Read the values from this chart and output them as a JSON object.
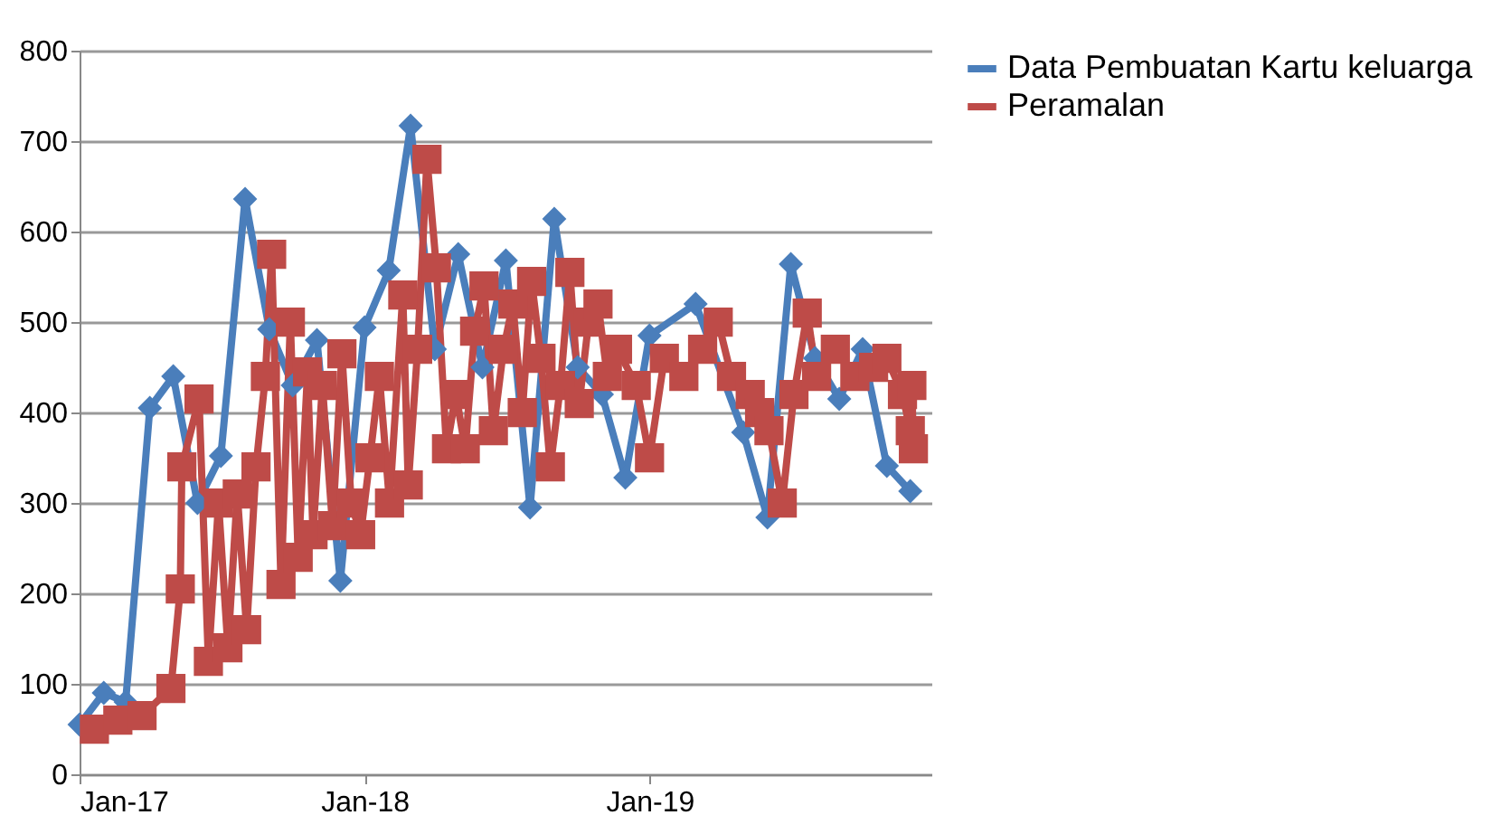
{
  "chart_data": {
    "type": "line",
    "xlim": [
      "2017-01-01",
      "2019-12-28"
    ],
    "xticks": [
      {
        "value": "2017-01-01",
        "label": "Jan-17"
      },
      {
        "value": "2018-01-01",
        "label": "Jan-18"
      },
      {
        "value": "2019-01-01",
        "label": "Jan-19"
      }
    ],
    "ylim": [
      0,
      800
    ],
    "yticks": [
      0,
      100,
      200,
      300,
      400,
      500,
      600,
      700,
      800
    ],
    "grid": "y",
    "legend": "right",
    "series": [
      {
        "name": "Data Pembuatan Kartu keluarga",
        "color": "#4a7ebb",
        "marker": "diamond",
        "x": [
          "2017-01",
          "2017-02",
          "2017-03",
          "2017-04",
          "2017-05",
          "2017-06",
          "2017-07",
          "2017-08",
          "2017-09",
          "2017-10",
          "2017-11",
          "2017-12",
          "2018-01",
          "2018-02",
          "2018-03",
          "2018-04",
          "2018-05",
          "2018-06",
          "2018-07",
          "2018-08",
          "2018-09",
          "2018-10",
          "2018-11",
          "2018-12",
          "2019-01",
          "2019-02",
          "2019-03",
          "2019-04",
          "2019-05",
          "2019-06",
          "2019-07",
          "2019-08",
          "2019-09",
          "2019-10",
          "2019-11",
          "2019-12"
        ],
        "values": [
          55,
          90,
          80,
          405,
          440,
          300,
          352,
          636,
          492,
          430,
          480,
          214,
          494,
          557,
          717,
          470,
          575,
          450,
          568,
          295,
          614,
          450,
          420,
          328,
          485,
          null,
          520,
          null,
          378,
          284,
          564,
          460,
          415,
          470,
          341,
          313
        ]
      },
      {
        "name": "Peramalan",
        "color": "#be4b48",
        "marker": "square",
        "x": [
          "2017-01-20",
          "2017-02-19",
          "2017-03-22",
          "2017-04-28",
          "2017-05-10",
          "2017-05-12",
          "2017-06-03",
          "2017-06-15",
          "2017-06-28",
          "2017-07-10",
          "2017-07-22",
          "2017-08-03",
          "2017-08-15",
          "2017-08-27",
          "2017-09-04",
          "2017-09-16",
          "2017-09-28",
          "2017-10-08",
          "2017-10-20",
          "2017-10-27",
          "2017-11-08",
          "2017-11-21",
          "2017-12-03",
          "2017-12-15",
          "2017-12-27",
          "2018-01-08",
          "2018-01-20",
          "2018-02-02",
          "2018-02-19",
          "2018-02-26",
          "2018-03-10",
          "2018-03-22",
          "2018-04-03",
          "2018-04-16",
          "2018-04-28",
          "2018-05-10",
          "2018-05-22",
          "2018-06-03",
          "2018-06-15",
          "2018-06-28",
          "2018-07-10",
          "2018-07-22",
          "2018-08-03",
          "2018-08-15",
          "2018-08-27",
          "2018-09-09",
          "2018-09-21",
          "2018-10-03",
          "2018-10-15",
          "2018-10-27",
          "2018-11-08",
          "2018-11-21",
          "2018-12-15",
          "2019-01-01",
          "2019-01-20",
          "2019-02-14",
          "2019-03-10",
          "2019-03-30",
          "2019-04-16",
          "2019-05-10",
          "2019-05-22",
          "2019-06-03",
          "2019-06-20",
          "2019-07-05",
          "2019-07-22",
          "2019-08-03",
          "2019-08-27",
          "2019-09-21",
          "2019-10-15",
          "2019-11-01",
          "2019-11-21",
          "2019-12-01",
          "2019-12-03",
          "2019-12-05"
        ],
        "values": [
          50,
          60,
          65,
          95,
          205,
          340,
          415,
          125,
          300,
          140,
          310,
          160,
          340,
          440,
          575,
          210,
          500,
          240,
          445,
          265,
          430,
          275,
          465,
          300,
          265,
          350,
          440,
          300,
          530,
          320,
          470,
          680,
          560,
          360,
          420,
          360,
          490,
          540,
          380,
          470,
          520,
          400,
          545,
          460,
          340,
          430,
          555,
          410,
          500,
          520,
          440,
          470,
          430,
          350,
          460,
          440,
          470,
          500,
          440,
          420,
          400,
          380,
          300,
          420,
          510,
          440,
          470,
          440,
          450,
          460,
          420,
          380,
          430,
          360
        ]
      }
    ]
  }
}
